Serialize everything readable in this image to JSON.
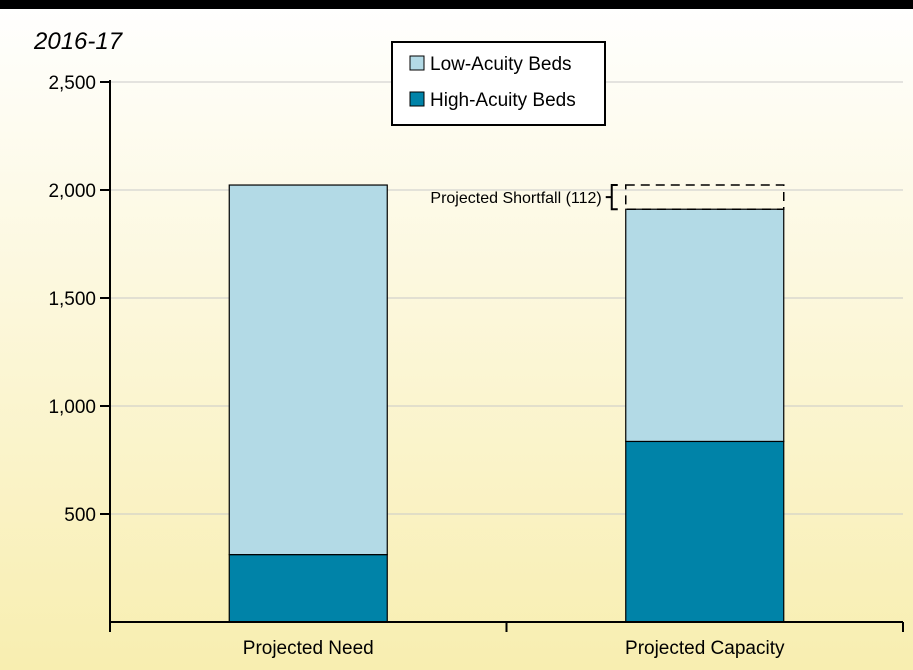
{
  "chart_data": {
    "type": "bar",
    "stacked": true,
    "title": "2016-17",
    "categories": [
      "Projected Need",
      "Projected Capacity"
    ],
    "series": [
      {
        "name": "High-Acuity Beds",
        "values": [
          312,
          836
        ],
        "color": "#0083a8"
      },
      {
        "name": "Low-Acuity Beds",
        "values": [
          1711,
          1075
        ],
        "color": "#b3dae6"
      }
    ],
    "shortfall": {
      "label": "Projected Shortfall (112)",
      "value": 112,
      "category": "Projected Capacity"
    },
    "ylim": [
      0,
      2500
    ],
    "yticks": [
      {
        "value": 500,
        "label": "500"
      },
      {
        "value": 1000,
        "label": "1,000"
      },
      {
        "value": 1500,
        "label": "1,500"
      },
      {
        "value": 2000,
        "label": "2,000"
      },
      {
        "value": 2500,
        "label": "2,500"
      }
    ],
    "grid": true,
    "legend": {
      "position": "top-center",
      "order": [
        "Low-Acuity Beds",
        "High-Acuity Beds"
      ]
    },
    "background": {
      "top": "#ffffff",
      "bottom": "#f8eeb0"
    }
  }
}
